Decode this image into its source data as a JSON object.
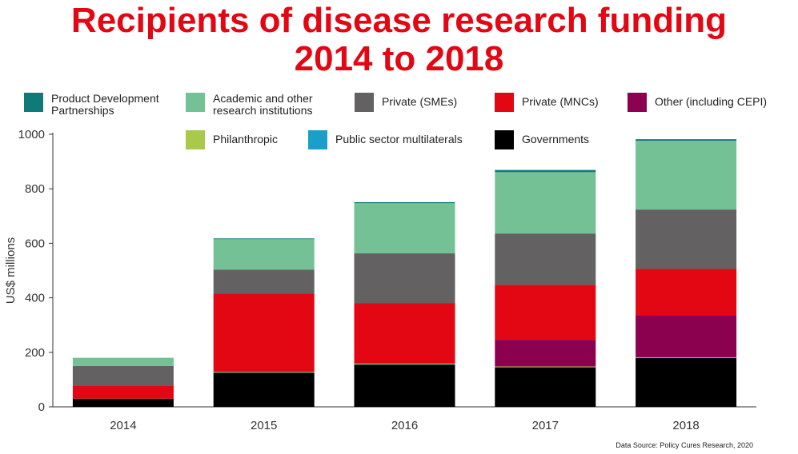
{
  "title_line1": "Recipients of disease research funding",
  "title_line2": "2014 to 2018",
  "source": "Data Source: Policy Cures Research, 2020",
  "legend": [
    {
      "label": "Product Development Partnerships",
      "color": "#0f7a78"
    },
    {
      "label": "Academic and other research institutions",
      "color": "#74c196"
    },
    {
      "label": "Private (SMEs)",
      "color": "#636161"
    },
    {
      "label": "Private (MNCs)",
      "color": "#e30613"
    },
    {
      "label": "Other (including CEPI)",
      "color": "#8c0050"
    },
    {
      "label": "Philanthropic",
      "color": "#a8c94a"
    },
    {
      "label": "Public sector multilaterals",
      "color": "#1a9fcb"
    },
    {
      "label": "Governments",
      "color": "#000000"
    }
  ],
  "chart_data": {
    "type": "bar",
    "stacked": true,
    "ylabel": "US$ millions",
    "xlabel": "",
    "ylim": [
      0,
      1000
    ],
    "yticks": [
      0,
      200,
      400,
      600,
      800,
      1000
    ],
    "categories": [
      "2014",
      "2015",
      "2016",
      "2017",
      "2018"
    ],
    "series": [
      {
        "name": "Governments",
        "color": "#000000",
        "values": [
          30,
          125,
          155,
          145,
          180
        ]
      },
      {
        "name": "Public sector multilaterals",
        "color": "#1a9fcb",
        "values": [
          0,
          2,
          3,
          2,
          1
        ]
      },
      {
        "name": "Philanthropic",
        "color": "#a8c94a",
        "values": [
          0,
          1,
          1,
          1,
          1
        ]
      },
      {
        "name": "Other (including CEPI)",
        "color": "#8c0050",
        "values": [
          0,
          0,
          0,
          98,
          154
        ]
      },
      {
        "name": "Private (MNCs)",
        "color": "#e30613",
        "values": [
          48,
          287,
          222,
          202,
          170
        ]
      },
      {
        "name": "Private (SMEs)",
        "color": "#636161",
        "values": [
          72,
          88,
          182,
          188,
          218
        ]
      },
      {
        "name": "Academic and other research institutions",
        "color": "#74c196",
        "values": [
          30,
          112,
          184,
          225,
          252
        ]
      },
      {
        "name": "Product Development Partnerships",
        "color": "#0f7a78",
        "values": [
          0,
          3,
          4,
          8,
          6
        ]
      }
    ]
  }
}
